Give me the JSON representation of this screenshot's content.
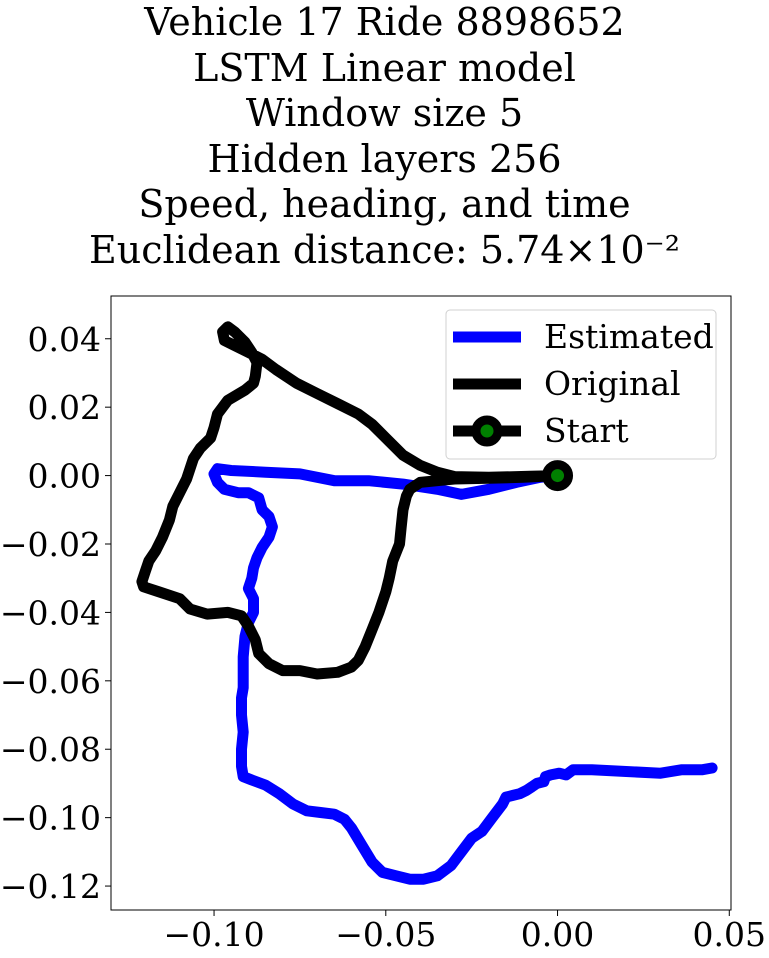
{
  "title_lines": [
    "Vehicle 17 Ride 8898652",
    "LSTM Linear model",
    "Window size 5",
    "Hidden layers 256",
    "Speed, heading, and time",
    "Euclidean distance: 5.74×10⁻²"
  ],
  "chart_data": {
    "type": "line",
    "xlim": [
      -0.13,
      0.0505
    ],
    "ylim": [
      -0.127,
      0.0525
    ],
    "x_ticks": [
      -0.1,
      -0.05,
      0.0,
      0.05
    ],
    "x_tick_labels": [
      "−0.10",
      "−0.05",
      "0.00",
      "0.05"
    ],
    "y_ticks": [
      0.04,
      0.02,
      0.0,
      -0.02,
      -0.04,
      -0.06,
      -0.08,
      -0.1,
      -0.12
    ],
    "y_tick_labels": [
      "0.04",
      "0.02",
      "0.00",
      "−0.02",
      "−0.04",
      "−0.06",
      "−0.08",
      "−0.10",
      "−0.12"
    ],
    "grid": false,
    "legend_position": "top-right",
    "series": [
      {
        "name": "Estimated",
        "color": "#0000ff",
        "points": [
          [
            0,
            0
          ],
          [
            -0.005,
            -0.0005
          ],
          [
            -0.012,
            -0.002
          ],
          [
            -0.02,
            -0.004
          ],
          [
            -0.028,
            -0.0055
          ],
          [
            -0.035,
            -0.004
          ],
          [
            -0.045,
            -0.0025
          ],
          [
            -0.055,
            -0.0015
          ],
          [
            -0.065,
            -0.0015
          ],
          [
            -0.075,
            0.0005
          ],
          [
            -0.085,
            0.001
          ],
          [
            -0.095,
            0.0015
          ],
          [
            -0.099,
            0.002
          ],
          [
            -0.1,
            0.0005
          ],
          [
            -0.099,
            -0.002
          ],
          [
            -0.097,
            -0.004
          ],
          [
            -0.093,
            -0.005
          ],
          [
            -0.09,
            -0.005
          ],
          [
            -0.087,
            -0.0065
          ],
          [
            -0.086,
            -0.01
          ],
          [
            -0.084,
            -0.012
          ],
          [
            -0.083,
            -0.015
          ],
          [
            -0.084,
            -0.018
          ],
          [
            -0.086,
            -0.021
          ],
          [
            -0.0875,
            -0.024
          ],
          [
            -0.0885,
            -0.027
          ],
          [
            -0.089,
            -0.03
          ],
          [
            -0.09,
            -0.033
          ],
          [
            -0.0885,
            -0.036
          ],
          [
            -0.0885,
            -0.04
          ],
          [
            -0.09,
            -0.043
          ],
          [
            -0.091,
            -0.047
          ],
          [
            -0.0915,
            -0.053
          ],
          [
            -0.0915,
            -0.058
          ],
          [
            -0.0915,
            -0.062
          ],
          [
            -0.092,
            -0.065
          ],
          [
            -0.092,
            -0.07
          ],
          [
            -0.0915,
            -0.075
          ],
          [
            -0.092,
            -0.08
          ],
          [
            -0.092,
            -0.085
          ],
          [
            -0.0915,
            -0.088
          ],
          [
            -0.089,
            -0.089
          ],
          [
            -0.085,
            -0.0905
          ],
          [
            -0.081,
            -0.093
          ],
          [
            -0.077,
            -0.096
          ],
          [
            -0.073,
            -0.098
          ],
          [
            -0.069,
            -0.0985
          ],
          [
            -0.065,
            -0.099
          ],
          [
            -0.062,
            -0.1005
          ],
          [
            -0.06,
            -0.103
          ],
          [
            -0.057,
            -0.108
          ],
          [
            -0.054,
            -0.113
          ],
          [
            -0.051,
            -0.116
          ],
          [
            -0.047,
            -0.117
          ],
          [
            -0.043,
            -0.118
          ],
          [
            -0.039,
            -0.118
          ],
          [
            -0.035,
            -0.117
          ],
          [
            -0.031,
            -0.114
          ],
          [
            -0.028,
            -0.11
          ],
          [
            -0.025,
            -0.106
          ],
          [
            -0.022,
            -0.104
          ],
          [
            -0.019,
            -0.1
          ],
          [
            -0.016,
            -0.096
          ],
          [
            -0.015,
            -0.094
          ],
          [
            -0.013,
            -0.0935
          ],
          [
            -0.011,
            -0.093
          ],
          [
            -0.009,
            -0.092
          ],
          [
            -0.0075,
            -0.091
          ],
          [
            -0.006,
            -0.09
          ],
          [
            -0.004,
            -0.0895
          ],
          [
            -0.0035,
            -0.088
          ],
          [
            -0.002,
            -0.0875
          ],
          [
            0.0005,
            -0.087
          ],
          [
            0.0025,
            -0.0875
          ],
          [
            0.0045,
            -0.086
          ],
          [
            0.01,
            -0.086
          ],
          [
            0.02,
            -0.0865
          ],
          [
            0.03,
            -0.087
          ],
          [
            0.036,
            -0.086
          ],
          [
            0.042,
            -0.086
          ],
          [
            0.045,
            -0.0855
          ]
        ]
      },
      {
        "name": "Original",
        "color": "#000000",
        "points": [
          [
            0,
            0
          ],
          [
            -0.008,
            -0.0002
          ],
          [
            -0.02,
            -0.0005
          ],
          [
            -0.03,
            -0.0003
          ],
          [
            -0.035,
            0.001
          ],
          [
            -0.04,
            0.003
          ],
          [
            -0.045,
            0.006
          ],
          [
            -0.05,
            0.011
          ],
          [
            -0.054,
            0.015
          ],
          [
            -0.058,
            0.018
          ],
          [
            -0.064,
            0.021
          ],
          [
            -0.07,
            0.024
          ],
          [
            -0.076,
            0.027
          ],
          [
            -0.082,
            0.031
          ],
          [
            -0.086,
            0.034
          ],
          [
            -0.09,
            0.036
          ],
          [
            -0.094,
            0.038
          ],
          [
            -0.097,
            0.0395
          ],
          [
            -0.0975,
            0.042
          ],
          [
            -0.096,
            0.0435
          ],
          [
            -0.094,
            0.042
          ],
          [
            -0.091,
            0.039
          ],
          [
            -0.089,
            0.036
          ],
          [
            -0.0875,
            0.033
          ],
          [
            -0.088,
            0.029
          ],
          [
            -0.0885,
            0.027
          ],
          [
            -0.091,
            0.025
          ],
          [
            -0.096,
            0.022
          ],
          [
            -0.099,
            0.018
          ],
          [
            -0.1,
            0.014
          ],
          [
            -0.101,
            0.011
          ],
          [
            -0.104,
            0.008
          ],
          [
            -0.106,
            0.005
          ],
          [
            -0.107,
            0.002
          ],
          [
            -0.108,
            -0.001
          ],
          [
            -0.11,
            -0.005
          ],
          [
            -0.112,
            -0.009
          ],
          [
            -0.113,
            -0.013
          ],
          [
            -0.115,
            -0.018
          ],
          [
            -0.117,
            -0.022
          ],
          [
            -0.119,
            -0.025
          ],
          [
            -0.12,
            -0.028
          ],
          [
            -0.121,
            -0.031
          ],
          [
            -0.1205,
            -0.0325
          ],
          [
            -0.116,
            -0.034
          ],
          [
            -0.11,
            -0.036
          ],
          [
            -0.107,
            -0.039
          ],
          [
            -0.102,
            -0.0405
          ],
          [
            -0.096,
            -0.04
          ],
          [
            -0.092,
            -0.041
          ],
          [
            -0.09,
            -0.044
          ],
          [
            -0.088,
            -0.048
          ],
          [
            -0.087,
            -0.052
          ],
          [
            -0.084,
            -0.055
          ],
          [
            -0.08,
            -0.057
          ],
          [
            -0.075,
            -0.057
          ],
          [
            -0.07,
            -0.058
          ],
          [
            -0.064,
            -0.0575
          ],
          [
            -0.06,
            -0.056
          ],
          [
            -0.058,
            -0.054
          ],
          [
            -0.056,
            -0.05
          ],
          [
            -0.054,
            -0.045
          ],
          [
            -0.052,
            -0.04
          ],
          [
            -0.05,
            -0.034
          ],
          [
            -0.049,
            -0.03
          ],
          [
            -0.048,
            -0.025
          ],
          [
            -0.046,
            -0.02
          ],
          [
            -0.0455,
            -0.015
          ],
          [
            -0.045,
            -0.01
          ],
          [
            -0.044,
            -0.006
          ],
          [
            -0.043,
            -0.004
          ],
          [
            -0.04,
            -0.002
          ],
          [
            -0.035,
            -0.0015
          ],
          [
            -0.03,
            -0.001
          ],
          [
            -0.02,
            -0.0008
          ],
          [
            -0.01,
            -0.0005
          ],
          [
            0,
            0
          ]
        ]
      },
      {
        "name": "Start",
        "color": "#000000",
        "marker_fill": "#008000",
        "points": [
          [
            0,
            0
          ]
        ]
      }
    ]
  }
}
